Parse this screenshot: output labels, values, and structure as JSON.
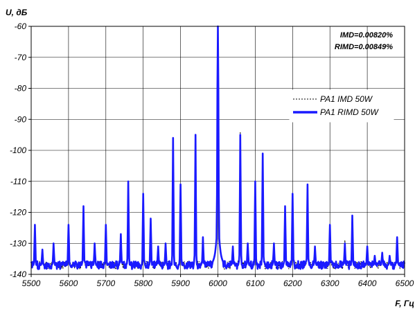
{
  "chart_data": {
    "type": "line",
    "ylabel": "U, дБ",
    "xlabel": "F, Гц",
    "xlim": [
      5500,
      6500
    ],
    "ylim": [
      -140,
      -60
    ],
    "x_ticks": [
      5500,
      5600,
      5700,
      5800,
      5900,
      6000,
      6100,
      6200,
      6300,
      6400,
      6500
    ],
    "y_ticks": [
      -60,
      -70,
      -80,
      -90,
      -100,
      -110,
      -120,
      -130,
      -140
    ],
    "grid": true,
    "legend_position": "right",
    "annotations": [
      "IMD=0.00820%",
      "RIMD=0.00849%"
    ],
    "noise_floor": -137,
    "colors": {
      "imd": "#000000",
      "rimd": "#1a1aff"
    },
    "series": [
      {
        "name": "PA1 IMD 50W",
        "style": "dotted",
        "peaks": [
          {
            "x": 5510,
            "y": -124
          },
          {
            "x": 5530,
            "y": -132
          },
          {
            "x": 5560,
            "y": -131
          },
          {
            "x": 5600,
            "y": -124
          },
          {
            "x": 5640,
            "y": -118
          },
          {
            "x": 5670,
            "y": -130
          },
          {
            "x": 5700,
            "y": -124
          },
          {
            "x": 5740,
            "y": -127
          },
          {
            "x": 5760,
            "y": -110
          },
          {
            "x": 5800,
            "y": -114
          },
          {
            "x": 5820,
            "y": -122
          },
          {
            "x": 5840,
            "y": -131
          },
          {
            "x": 5860,
            "y": -130
          },
          {
            "x": 5880,
            "y": -96
          },
          {
            "x": 5900,
            "y": -111
          },
          {
            "x": 5940,
            "y": -95
          },
          {
            "x": 5960,
            "y": -128
          },
          {
            "x": 6000,
            "y": -60
          },
          {
            "x": 6040,
            "y": -131
          },
          {
            "x": 6060,
            "y": -94
          },
          {
            "x": 6080,
            "y": -130
          },
          {
            "x": 6100,
            "y": -110
          },
          {
            "x": 6120,
            "y": -101
          },
          {
            "x": 6150,
            "y": -130
          },
          {
            "x": 6180,
            "y": -118
          },
          {
            "x": 6200,
            "y": -114
          },
          {
            "x": 6240,
            "y": -111
          },
          {
            "x": 6260,
            "y": -131
          },
          {
            "x": 6300,
            "y": -124
          },
          {
            "x": 6340,
            "y": -129
          },
          {
            "x": 6360,
            "y": -121
          },
          {
            "x": 6400,
            "y": -131
          },
          {
            "x": 6420,
            "y": -134
          },
          {
            "x": 6440,
            "y": -133
          },
          {
            "x": 6460,
            "y": -134
          },
          {
            "x": 6480,
            "y": -128
          }
        ]
      },
      {
        "name": "PA1 RIMD 50W",
        "style": "solid",
        "peaks": [
          {
            "x": 5510,
            "y": -124
          },
          {
            "x": 5530,
            "y": -132
          },
          {
            "x": 5560,
            "y": -130
          },
          {
            "x": 5600,
            "y": -124
          },
          {
            "x": 5640,
            "y": -118
          },
          {
            "x": 5670,
            "y": -130
          },
          {
            "x": 5700,
            "y": -124
          },
          {
            "x": 5740,
            "y": -127
          },
          {
            "x": 5760,
            "y": -110
          },
          {
            "x": 5800,
            "y": -114
          },
          {
            "x": 5820,
            "y": -122
          },
          {
            "x": 5840,
            "y": -131
          },
          {
            "x": 5860,
            "y": -130
          },
          {
            "x": 5880,
            "y": -96
          },
          {
            "x": 5900,
            "y": -111
          },
          {
            "x": 5940,
            "y": -95
          },
          {
            "x": 5960,
            "y": -128
          },
          {
            "x": 6000,
            "y": -60
          },
          {
            "x": 6040,
            "y": -131
          },
          {
            "x": 6060,
            "y": -95
          },
          {
            "x": 6080,
            "y": -130
          },
          {
            "x": 6100,
            "y": -110
          },
          {
            "x": 6120,
            "y": -101
          },
          {
            "x": 6150,
            "y": -130
          },
          {
            "x": 6180,
            "y": -118
          },
          {
            "x": 6200,
            "y": -114
          },
          {
            "x": 6240,
            "y": -111
          },
          {
            "x": 6260,
            "y": -131
          },
          {
            "x": 6300,
            "y": -124
          },
          {
            "x": 6340,
            "y": -130
          },
          {
            "x": 6360,
            "y": -121
          },
          {
            "x": 6400,
            "y": -131
          },
          {
            "x": 6420,
            "y": -134
          },
          {
            "x": 6440,
            "y": -133
          },
          {
            "x": 6460,
            "y": -134
          },
          {
            "x": 6480,
            "y": -128
          }
        ]
      }
    ]
  }
}
